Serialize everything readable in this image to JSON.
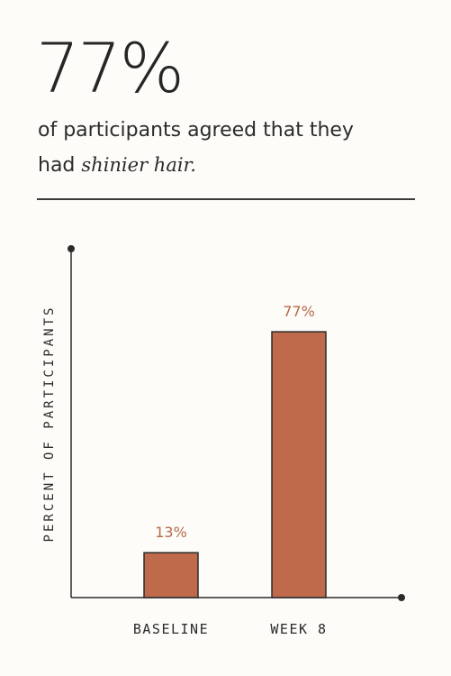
{
  "headline": {
    "stat": "77%",
    "line1": "of participants agreed that they",
    "line2_prefix": "had ",
    "line2_emphasis": "shinier hair."
  },
  "chart_data": {
    "type": "bar",
    "categories": [
      "BASELINE",
      "WEEK 8"
    ],
    "values": [
      13,
      77
    ],
    "value_labels": [
      "13%",
      "77%"
    ],
    "ylabel": "PERCENT OF PARTICIPANTS",
    "xlabel": "",
    "ylim": [
      0,
      100
    ],
    "bar_color": "#c06a4c",
    "label_color": "#b8694a",
    "grid": false
  }
}
